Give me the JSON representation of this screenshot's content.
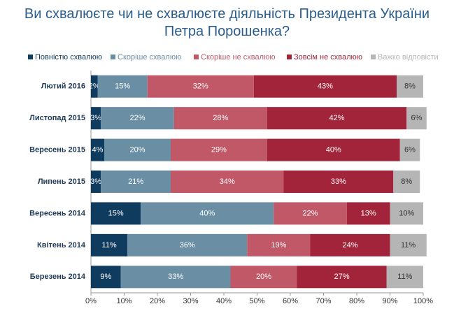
{
  "chart_data": {
    "type": "stacked-bar-horizontal",
    "title": "Ви схвалюєте чи не схвалюєте діяльність Президента України Петра Порошенка?",
    "categories": [
      "Лютий 2016",
      "Листопад 2015",
      "Вересень 2015",
      "Липень 2015",
      "Вересень 2014",
      "Квітень 2014",
      "Березень 2014"
    ],
    "series": [
      {
        "name": "Повністю схвалюю",
        "color": "#0f3b5f",
        "values": [
          2,
          3,
          4,
          3,
          15,
          11,
          9
        ],
        "value_labels": [
          "2%",
          "3%",
          "4%",
          "3%",
          "15%",
          "11%",
          "9%"
        ]
      },
      {
        "name": "Скоріше схвалюю",
        "color": "#6a8ea3",
        "values": [
          15,
          22,
          20,
          21,
          40,
          36,
          33
        ],
        "value_labels": [
          "15%",
          "22%",
          "20%",
          "21%",
          "40%",
          "36%",
          "33%"
        ]
      },
      {
        "name": "Скоріше не схвалюю",
        "color": "#c05868",
        "values": [
          32,
          28,
          29,
          34,
          22,
          19,
          20
        ],
        "value_labels": [
          "32%",
          "28%",
          "29%",
          "34%",
          "22%",
          "19%",
          "20%"
        ]
      },
      {
        "name": "Зовсім не схвалюю",
        "color": "#a2243a",
        "values": [
          43,
          42,
          40,
          33,
          13,
          24,
          27
        ],
        "value_labels": [
          "43%",
          "42%",
          "40%",
          "33%",
          "13%",
          "24%",
          "27%"
        ]
      },
      {
        "name": "Важко відповісти",
        "color": "#b5b5b5",
        "values": [
          8,
          6,
          6,
          8,
          10,
          11,
          11
        ],
        "value_labels": [
          "8%",
          "6%",
          "6%",
          "8%",
          "10%",
          "11%",
          "11%"
        ]
      }
    ],
    "xlim": [
      0,
      100
    ],
    "xticks": [
      {
        "value": 0,
        "label": "0%"
      },
      {
        "value": 10,
        "label": "10%"
      },
      {
        "value": 20,
        "label": "20%"
      },
      {
        "value": 30,
        "label": "30%"
      },
      {
        "value": 40,
        "label": "40%"
      },
      {
        "value": 50,
        "label": "50%"
      },
      {
        "value": 60,
        "label": "60%"
      },
      {
        "value": 70,
        "label": "70%"
      },
      {
        "value": 80,
        "label": "80%"
      },
      {
        "value": 90,
        "label": "90%"
      },
      {
        "value": 100,
        "label": "100%"
      }
    ],
    "legend": "top"
  }
}
